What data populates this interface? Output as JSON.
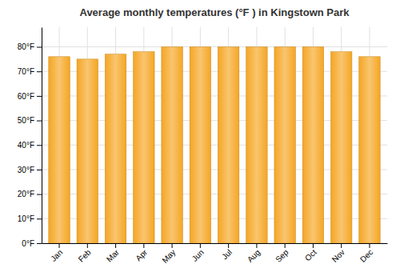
{
  "chart_data": {
    "type": "bar",
    "title": "Average monthly temperatures (°F ) in Kingstown Park",
    "categories": [
      "Jan",
      "Feb",
      "Mar",
      "Apr",
      "May",
      "Jun",
      "Jul",
      "Aug",
      "Sep",
      "Oct",
      "Nov",
      "Dec"
    ],
    "values": [
      76,
      75,
      77,
      78,
      80,
      80,
      80,
      80,
      80,
      80,
      78,
      76
    ],
    "color": "#F5A623",
    "ylim": [
      0,
      88
    ],
    "yticks": [
      {
        "value": 0,
        "label": "0°F"
      },
      {
        "value": 10,
        "label": "10°F"
      },
      {
        "value": 20,
        "label": "20°F"
      },
      {
        "value": 30,
        "label": "30°F"
      },
      {
        "value": 40,
        "label": "40°F"
      },
      {
        "value": 50,
        "label": "50°F"
      },
      {
        "value": 60,
        "label": "60°F"
      },
      {
        "value": 70,
        "label": "70°F"
      },
      {
        "value": 80,
        "label": "80°F"
      }
    ],
    "grid": true
  }
}
